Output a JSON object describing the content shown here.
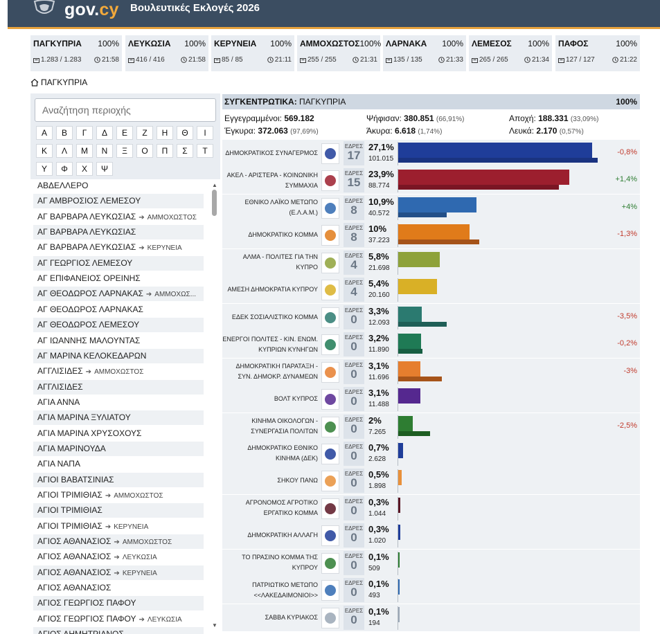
{
  "header": {
    "logo_main": "gov.",
    "logo_suffix": "cy",
    "title": "Βουλευτικές Εκλογές 2026"
  },
  "districts": [
    {
      "name": "ΠΑΓΚΥΠΡΙΑ",
      "pct": "100%",
      "stations": "1.283 / 1.283",
      "time": "21:58"
    },
    {
      "name": "ΛΕΥΚΩΣΙΑ",
      "pct": "100%",
      "stations": "416 / 416",
      "time": "21:58"
    },
    {
      "name": "ΚΕΡΥΝΕΙΑ",
      "pct": "100%",
      "stations": "85 / 85",
      "time": "21:11"
    },
    {
      "name": "ΑΜΜΟΧΩΣΤΟΣ",
      "pct": "100%",
      "stations": "255 / 255",
      "time": "21:31"
    },
    {
      "name": "ΛΑΡΝΑΚΑ",
      "pct": "100%",
      "stations": "135 / 135",
      "time": "21:33"
    },
    {
      "name": "ΛΕΜΕΣΟΣ",
      "pct": "100%",
      "stations": "265 / 265",
      "time": "21:34"
    },
    {
      "name": "ΠΑΦΟΣ",
      "pct": "100%",
      "stations": "127 / 127",
      "time": "21:22"
    }
  ],
  "breadcrumb": "ΠΑΓΚΥΠΡΙΑ",
  "search": {
    "placeholder": "Αναζήτηση περιοχής"
  },
  "letters": [
    "Α",
    "Β",
    "Γ",
    "Δ",
    "Ε",
    "Ζ",
    "Η",
    "Θ",
    "Ι",
    "Κ",
    "Λ",
    "Μ",
    "Ν",
    "Ξ",
    "Ο",
    "Π",
    "Σ",
    "Τ",
    "Υ",
    "Φ",
    "Χ",
    "Ψ"
  ],
  "areas": [
    {
      "name": "ΑΒΔΕΛΛΕΡΟ",
      "dest": ""
    },
    {
      "name": "ΑΓ ΑΜΒΡΟΣΙΟΣ ΛΕΜΕΣΟΥ",
      "dest": ""
    },
    {
      "name": "ΑΓ ΒΑΡΒΑΡΑ ΛΕΥΚΩΣΙΑΣ",
      "dest": "ΑΜΜΟΧΩΣΤΟΣ"
    },
    {
      "name": "ΑΓ ΒΑΡΒΑΡΑ ΛΕΥΚΩΣΙΑΣ",
      "dest": ""
    },
    {
      "name": "ΑΓ ΒΑΡΒΑΡΑ ΛΕΥΚΩΣΙΑΣ",
      "dest": "ΚΕΡΥΝΕΙΑ"
    },
    {
      "name": "ΑΓ ΓΕΩΡΓΙΟΣ ΛΕΜΕΣΟΥ",
      "dest": ""
    },
    {
      "name": "ΑΓ ΕΠΙΦΑΝΕΙΟΣ ΟΡΕΙΝΗΣ",
      "dest": ""
    },
    {
      "name": "ΑΓ ΘΕΟΔΩΡΟΣ ΛΑΡΝΑΚΑΣ",
      "dest": "ΑΜΜΟΧΩΣ..."
    },
    {
      "name": "ΑΓ ΘΕΟΔΩΡΟΣ ΛΑΡΝΑΚΑΣ",
      "dest": ""
    },
    {
      "name": "ΑΓ ΘΕΟΔΩΡΟΣ ΛΕΜΕΣΟΥ",
      "dest": ""
    },
    {
      "name": "ΑΓ ΙΩΑΝΝΗΣ ΜΑΛΟΥΝΤΑΣ",
      "dest": ""
    },
    {
      "name": "ΑΓ ΜΑΡΙΝΑ ΚΕΛΟΚΕΔΑΡΩΝ",
      "dest": ""
    },
    {
      "name": "ΑΓΓΛΙΣΙΔΕΣ",
      "dest": "ΑΜΜΟΧΩΣΤΟΣ"
    },
    {
      "name": "ΑΓΓΛΙΣΙΔΕΣ",
      "dest": ""
    },
    {
      "name": "ΑΓΙΑ ΑΝΝΑ",
      "dest": ""
    },
    {
      "name": "ΑΓΙΑ ΜΑΡΙΝΑ ΞΥΛΙΑΤΟΥ",
      "dest": ""
    },
    {
      "name": "ΑΓΙΑ ΜΑΡΙΝΑ ΧΡΥΣΟΧΟΥΣ",
      "dest": ""
    },
    {
      "name": "ΑΓΙΑ ΜΑΡΙΝΟΥΔΑ",
      "dest": ""
    },
    {
      "name": "ΑΓΙΑ ΝΑΠΑ",
      "dest": ""
    },
    {
      "name": "ΑΓΙΟΙ ΒΑΒΑΤΣΙΝΙΑΣ",
      "dest": ""
    },
    {
      "name": "ΑΓΙΟΙ ΤΡΙΜΙΘΙΑΣ",
      "dest": "ΑΜΜΟΧΩΣΤΟΣ"
    },
    {
      "name": "ΑΓΙΟΙ ΤΡΙΜΙΘΙΑΣ",
      "dest": ""
    },
    {
      "name": "ΑΓΙΟΙ ΤΡΙΜΙΘΙΑΣ",
      "dest": "ΚΕΡΥΝΕΙΑ"
    },
    {
      "name": "ΑΓΙΟΣ ΑΘΑΝΑΣΙΟΣ",
      "dest": "ΑΜΜΟΧΩΣΤΟΣ"
    },
    {
      "name": "ΑΓΙΟΣ ΑΘΑΝΑΣΙΟΣ",
      "dest": "ΛΕΥΚΩΣΙΑ"
    },
    {
      "name": "ΑΓΙΟΣ ΑΘΑΝΑΣΙΟΣ",
      "dest": "ΚΕΡΥΝΕΙΑ"
    },
    {
      "name": "ΑΓΙΟΣ ΑΘΑΝΑΣΙΟΣ",
      "dest": ""
    },
    {
      "name": "ΑΓΙΟΣ ΓΕΩΡΓΙΟΣ ΠΑΦΟΥ",
      "dest": ""
    },
    {
      "name": "ΑΓΙΟΣ ΓΕΩΡΓΙΟΣ ΠΑΦΟΥ",
      "dest": "ΛΕΥΚΩΣΙΑ"
    },
    {
      "name": "ΑΓΙΟΣ ΔΗΜΗΤΡΙΑΝΟΣ",
      "dest": ""
    }
  ],
  "summary": {
    "label": "ΣΥΓΚΕΝΤΡΩΤΙΚΑ:",
    "region": "ΠΑΓΚΥΠΡΙΑ",
    "pct": "100%",
    "registered_label": "Εγγεγραμμένοι:",
    "registered": "569.182",
    "voted_label": "Ψήφισαν:",
    "voted": "380.851",
    "voted_pct": "(66,91%)",
    "abstention_label": "Αποχή:",
    "abstention": "188.331",
    "abstention_pct": "(33,09%)",
    "valid_label": "Έγκυρα:",
    "valid": "372.063",
    "valid_pct": "(97,69%)",
    "invalid_label": "Άκυρα:",
    "invalid": "6.618",
    "invalid_pct": "(1,74%)",
    "blank_label": "Λευκά:",
    "blank": "2.170",
    "blank_pct": "(0,57%)"
  },
  "seats_label": "ΕΔΡΕΣ",
  "parties": [
    {
      "name": "ΔΗΜΟΚΡΑΤΙΚΟΣ ΣΥΝΑΓΕΡΜΟΣ",
      "seats": "17",
      "pct": "27,1%",
      "votes": "101.015",
      "share": 27.1,
      "prev_share": 27.9,
      "change": "-0,8%",
      "color": "#1f3d99",
      "color2": "#1a3380",
      "logo": "disy-logo"
    },
    {
      "name": "ΑΚΕΛ - ΑΡΙΣΤΕΡΑ - ΚΟΙΝΩΝΙΚΗ ΣΥΜΜΑΧΙΑ",
      "seats": "15",
      "pct": "23,9%",
      "votes": "88.774",
      "share": 23.9,
      "prev_share": 22.5,
      "change": "+1,4%",
      "color": "#9c1f2e",
      "color2": "#7a1624",
      "logo": "akel-logo"
    },
    {
      "name": "ΕΘΝΙΚΟ ΛΑΪΚΟ ΜΕΤΩΠΟ (Ε.Λ.Α.Μ.)",
      "seats": "8",
      "pct": "10,9%",
      "votes": "40.572",
      "share": 10.9,
      "prev_share": 6.8,
      "change": "+4%",
      "color": "#2f69b0",
      "color2": "#234f88",
      "logo": "elam-logo"
    },
    {
      "name": "ΔΗΜΟΚΡΑΤΙΚΟ ΚΟΜΜΑ",
      "seats": "8",
      "pct": "10%",
      "votes": "37.223",
      "share": 10,
      "prev_share": 11.3,
      "change": "-1,3%",
      "color": "#e07b1a",
      "color2": "#a6541a",
      "logo": "diko-logo"
    },
    {
      "name": "ΑΛΜΑ - ΠΟΛΙΤΕΣ ΓΙΑ ΤΗΝ ΚΥΠΡΟ",
      "seats": "4",
      "pct": "5,8%",
      "votes": "21.698",
      "share": 5.8,
      "prev_share": null,
      "change": "",
      "color": "#8ea23a",
      "color2": "#8ea23a",
      "logo": "alma-logo"
    },
    {
      "name": "ΑΜΕΣΗ ΔΗΜΟΚΡΑΤΙΑ ΚΥΠΡΟΥ",
      "seats": "4",
      "pct": "5,4%",
      "votes": "20.160",
      "share": 5.4,
      "prev_share": null,
      "change": "",
      "color": "#d9b026",
      "color2": "#d9b026",
      "logo": "amesi-logo"
    },
    {
      "name": "ΕΔΕΚ ΣΟΣΙΑΛΙΣΤΙΚΟ ΚΟΜΜΑ",
      "seats": "0",
      "pct": "3,3%",
      "votes": "12.093",
      "share": 3.3,
      "prev_share": 6.8,
      "change": "-3,5%",
      "color": "#2b7a70",
      "color2": "#1f5f57",
      "logo": "edek-logo"
    },
    {
      "name": "ΕΝΕΡΓΟΙ ΠΟΛΙΤΕΣ - ΚΙΝ. ΕΝΩΜ. ΚΥΠΡΙΩΝ ΚΥΝΗΓΩΝ",
      "seats": "0",
      "pct": "3,2%",
      "votes": "11.890",
      "share": 3.2,
      "prev_share": 3.4,
      "change": "-0,2%",
      "color": "#1f7a55",
      "color2": "#175e42",
      "logo": "energoi-logo"
    },
    {
      "name": "ΔΗΜΟΚΡΑΤΙΚΗ ΠΑΡΑΤΑΞΗ - ΣΥΝ. ΔΗΜΟΚΡ. ΔΥΝΑΜΕΩΝ",
      "seats": "0",
      "pct": "3,1%",
      "votes": "11.696",
      "share": 3.1,
      "prev_share": 6.1,
      "change": "-3%",
      "color": "#e67e2e",
      "color2": "#a6541a",
      "logo": "dipa-logo"
    },
    {
      "name": "ΒΟΛΤ ΚΥΠΡΟΣ",
      "seats": "0",
      "pct": "3,1%",
      "votes": "11.488",
      "share": 3.1,
      "prev_share": null,
      "change": "",
      "color": "#55288f",
      "color2": "#55288f",
      "logo": "volt-logo"
    },
    {
      "name": "ΚΙΝΗΜΑ ΟΙΚΟΛΟΓΩΝ - ΣΥΝΕΡΓΑΣΙΑ ΠΟΛΙΤΩΝ",
      "seats": "0",
      "pct": "2%",
      "votes": "7.265",
      "share": 2,
      "prev_share": 4.5,
      "change": "-2,5%",
      "color": "#2e7d32",
      "color2": "#1e5e22",
      "logo": "greens-logo"
    },
    {
      "name": "ΔΗΜΟΚΡΑΤΙΚΟ ΕΘΝΙΚΟ ΚΙΝΗΜΑ (ΔΕΚ)",
      "seats": "0",
      "pct": "0,7%",
      "votes": "2.628",
      "share": 0.7,
      "prev_share": null,
      "change": "",
      "color": "#1f3d99",
      "color2": "#1f3d99",
      "logo": "dek-logo"
    },
    {
      "name": "ΣΗΚΟΥ ΠΑΝΩ",
      "seats": "0",
      "pct": "0,5%",
      "votes": "1.898",
      "share": 0.5,
      "prev_share": null,
      "change": "",
      "color": "#e8903a",
      "color2": "#e8903a",
      "logo": "sikou-logo"
    },
    {
      "name": "ΑΓΡΟΝΟΜΟΣ ΑΓΡΟΤΙΚΟ ΕΡΓΑΤΙΚΟ ΚΟΜΜΑ",
      "seats": "0",
      "pct": "0,3%",
      "votes": "1.044",
      "share": 0.3,
      "prev_share": null,
      "change": "",
      "color": "#5a1624",
      "color2": "#5a1624",
      "logo": "agronomos-logo"
    },
    {
      "name": "ΔΗΜΟΚΡΑΤΙΚΗ ΑΛΛΑΓΗ",
      "seats": "0",
      "pct": "0,3%",
      "votes": "1.020",
      "share": 0.3,
      "prev_share": null,
      "change": "",
      "color": "#1f3d99",
      "color2": "#1f3d99",
      "logo": "allagi-logo"
    },
    {
      "name": "ΤΟ ΠΡΑΣΙΝΟ ΚΟΜΜΑ ΤΗΣ ΚΥΠΡΟΥ",
      "seats": "0",
      "pct": "0,1%",
      "votes": "509",
      "share": 0.1,
      "prev_share": null,
      "change": "",
      "color": "#2e7d32",
      "color2": "#2e7d32",
      "logo": "prasino-logo"
    },
    {
      "name": "ΠΑΤΡΙΩΤΙΚΟ ΜΕΤΩΠΟ <<ΛΑΚΕΔΑΙΜΟΝΙΟΙ>>",
      "seats": "0",
      "pct": "0,1%",
      "votes": "493",
      "share": 0.1,
      "prev_share": null,
      "change": "",
      "color": "#2f69b0",
      "color2": "#2f69b0",
      "logo": "patriotiko-logo"
    },
    {
      "name": "ΣΑΒΒΑ ΚΥΡΙΑΚΟΣ",
      "seats": "0",
      "pct": "0,1%",
      "votes": "194",
      "share": 0.1,
      "prev_share": null,
      "change": "",
      "color": "#9aa7b5",
      "color2": "#9aa7b5",
      "logo": "blank-logo"
    }
  ]
}
